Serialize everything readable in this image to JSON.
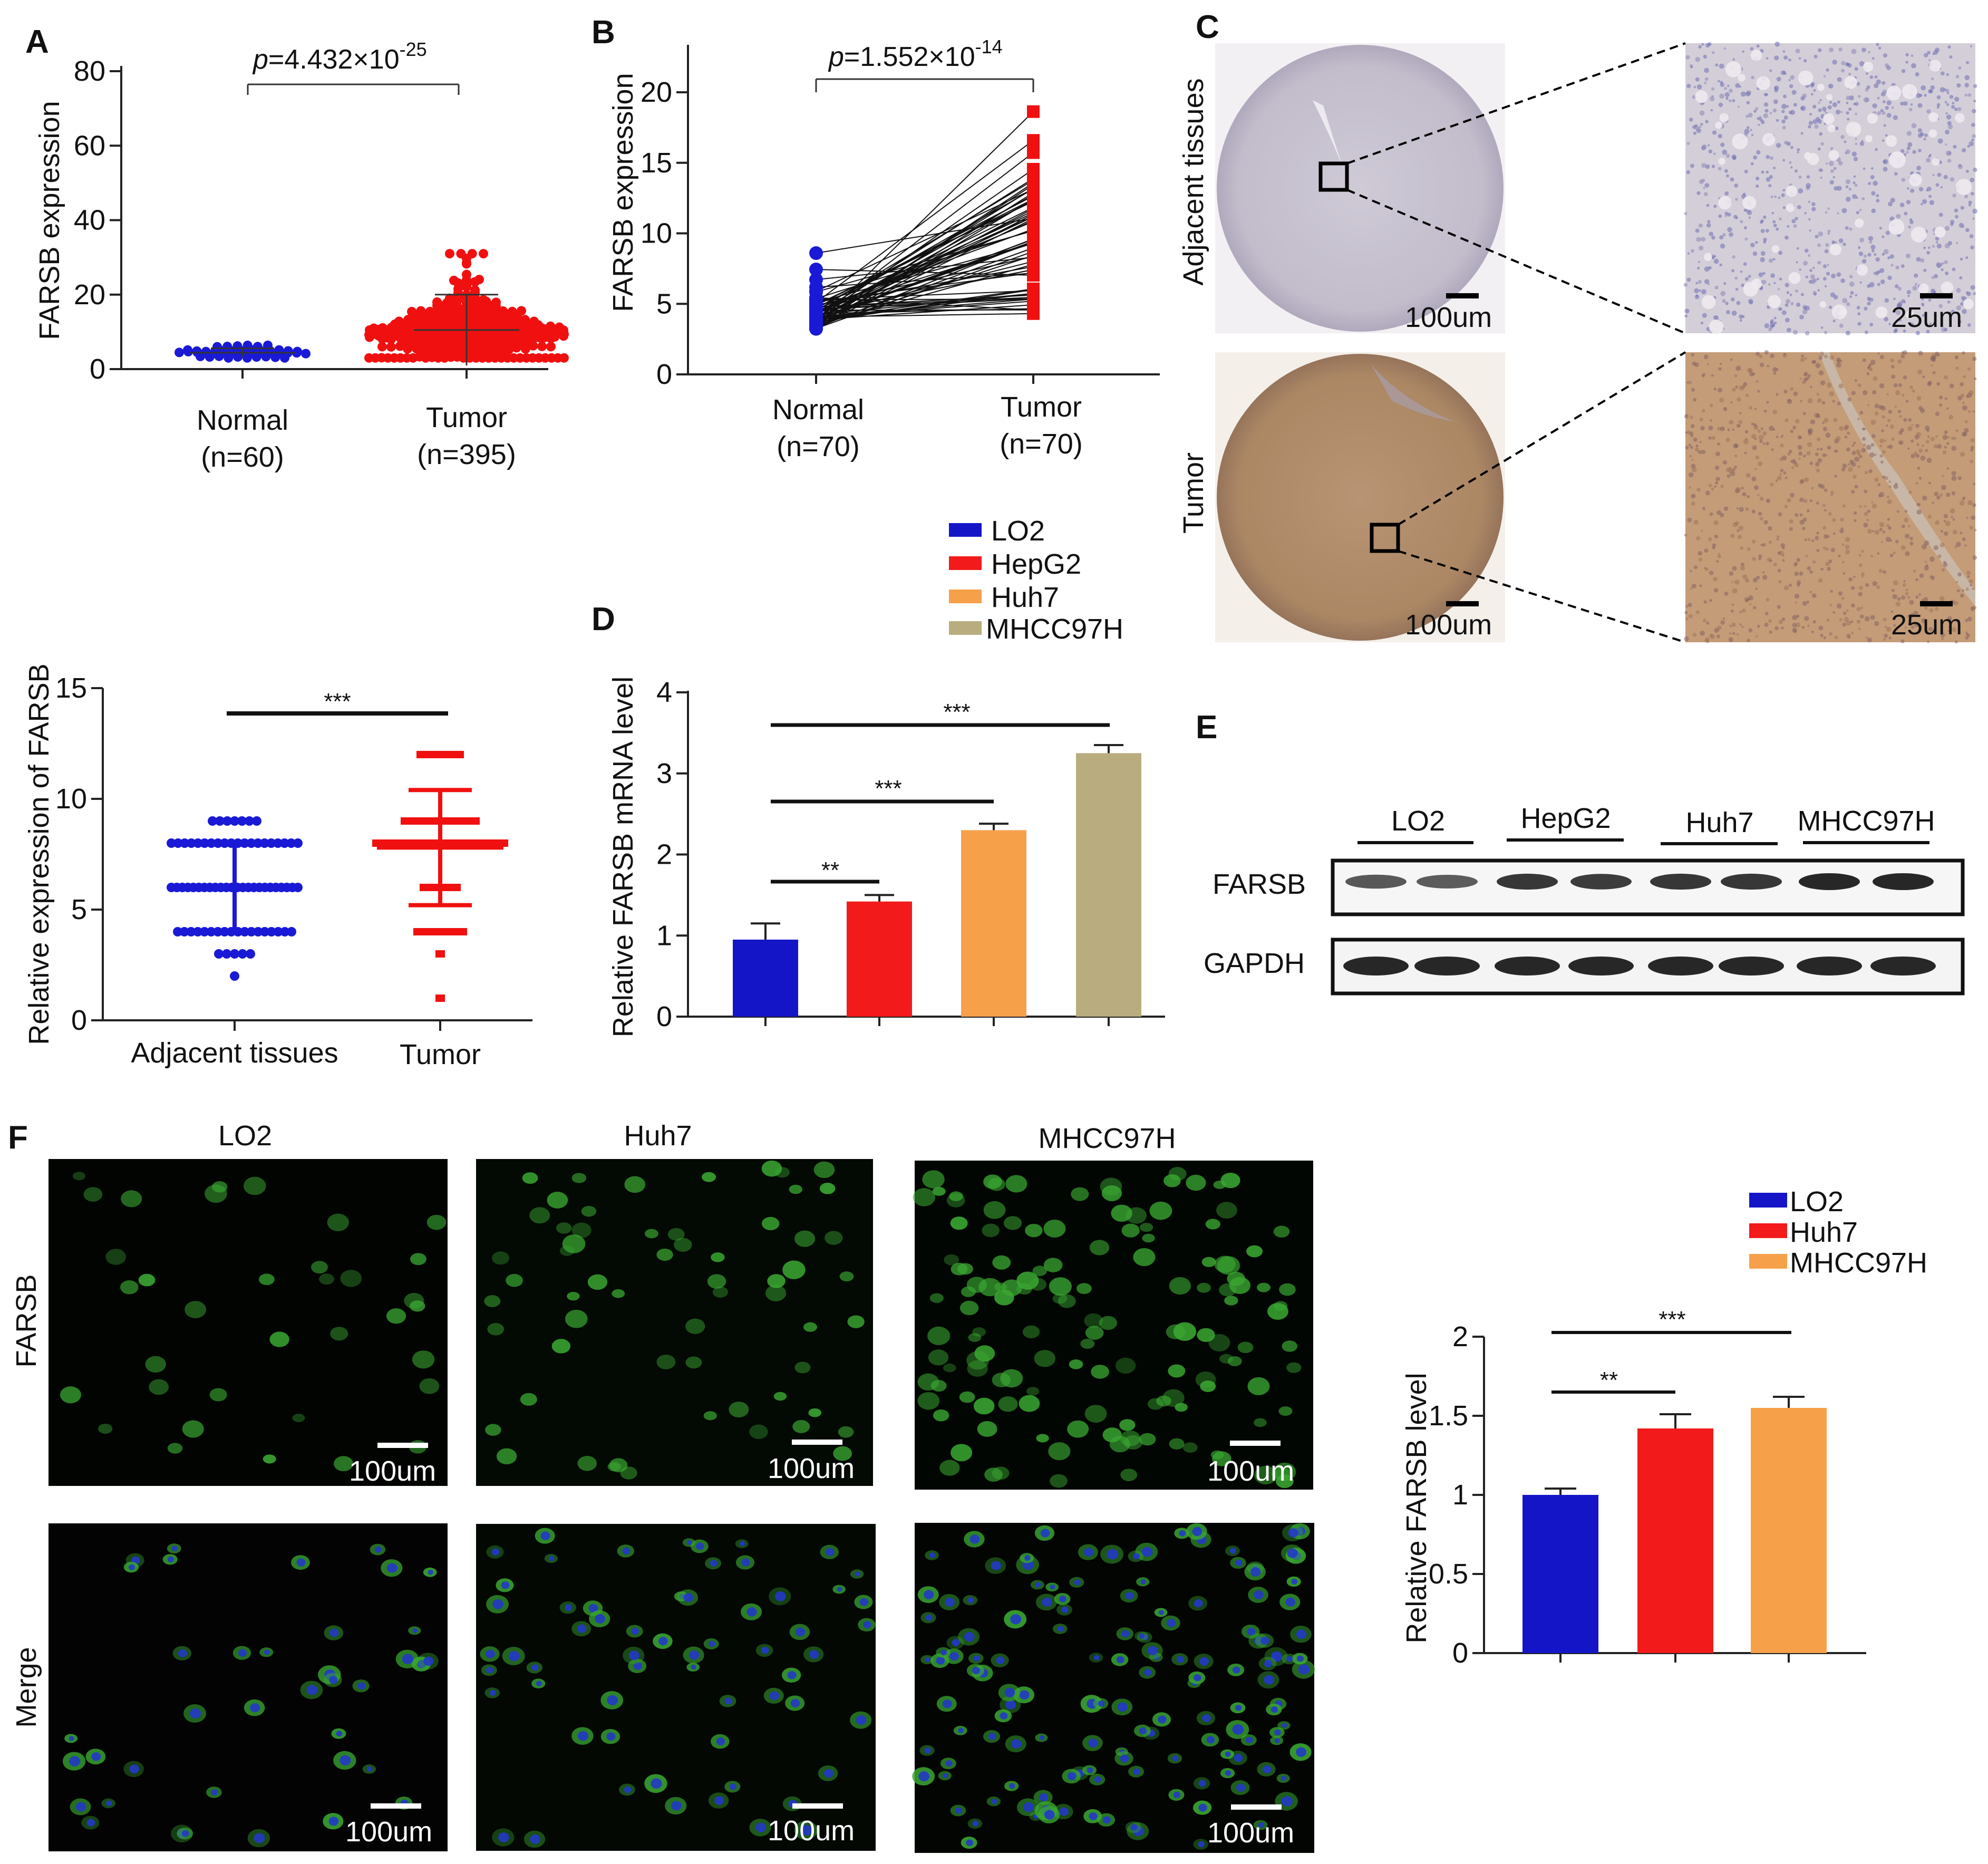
{
  "colors": {
    "normal_blue": "#1a1ad6",
    "tumor_red": "#f01010",
    "lo2": "#1515c8",
    "hepg2": "#f21a1a",
    "huh7": "#f7a04a",
    "mhcc97h": "#b9ad7f",
    "ihc_adjacent": "#c9c3cf",
    "ihc_tumor": "#b48e6c",
    "if_green": "#3aa832",
    "if_blue": "#2238c8"
  },
  "panelA": {
    "letter": "A",
    "pval_prefix": "p",
    "pval_text": "=4.432×10",
    "pval_exp": "-25",
    "chart_data": {
      "type": "scatter",
      "ylabel": "FARSB expression",
      "ylim": [
        0,
        80
      ],
      "yticks": [
        0,
        20,
        40,
        60,
        80
      ],
      "categories": [
        "Normal\n(n=60)",
        "Tumor\n(n=395)"
      ],
      "category_labels": [
        [
          "Normal",
          "(n=60)"
        ],
        [
          "Tumor",
          "(n=395)"
        ]
      ],
      "series": [
        {
          "group": "Normal",
          "n": 60,
          "mean": 4.4,
          "sd": 1.2,
          "min": 3,
          "max": 8.5
        },
        {
          "group": "Tumor",
          "n": 395,
          "mean": 10.5,
          "sd": 9.5,
          "min": 3,
          "max": 31
        }
      ]
    }
  },
  "panelB": {
    "letter": "B",
    "pval_prefix": "p",
    "pval_text": "=1.552×10",
    "pval_exp": "-14",
    "chart_data": {
      "type": "scatter",
      "ylabel": "FARSB expression",
      "ylim": [
        0,
        20
      ],
      "yticks": [
        0,
        5,
        10,
        15,
        20
      ],
      "categories": [
        "Normal\n(n=70)",
        "Tumor\n(n=70)"
      ],
      "category_labels": [
        [
          "Normal",
          "(n=70)"
        ],
        [
          "Tumor",
          "(n=70)"
        ]
      ],
      "paired": true,
      "normal_range": [
        3,
        8.5
      ],
      "tumor_range": [
        3.5,
        19
      ]
    }
  },
  "panelC": {
    "letter": "C",
    "row_labels": [
      "Adjacent tissues",
      "Tumor"
    ],
    "scale_whole": "100um",
    "scale_zoom": "25um"
  },
  "legendD": [
    "LO2",
    "HepG2",
    "Huh7",
    "MHCC97H"
  ],
  "panelLeft": {
    "chart_data": {
      "type": "scatter",
      "ylabel": "Relative expression of FARSB",
      "ylim": [
        0,
        15
      ],
      "yticks": [
        0,
        5,
        10,
        15
      ],
      "categories": [
        "Adjacent tissues",
        "Tumor"
      ],
      "series": [
        {
          "group": "Adjacent tissues",
          "mean": 6.0,
          "sd_low": 4.0,
          "sd_high": 8.0,
          "levels": [
            2,
            3,
            4,
            6,
            8,
            9
          ]
        },
        {
          "group": "Tumor",
          "mean": 7.8,
          "sd_low": 5.2,
          "sd_high": 10.4,
          "levels": [
            1,
            3,
            4,
            6,
            8,
            9,
            12
          ]
        }
      ],
      "significance": "***"
    }
  },
  "panelD": {
    "letter": "D",
    "chart_data": {
      "type": "bar",
      "ylabel": "Relative FARSB mRNA level",
      "ylim": [
        0,
        4
      ],
      "yticks": [
        0,
        1,
        2,
        3,
        4
      ],
      "categories": [
        "LO2",
        "HepG2",
        "Huh7",
        "MHCC97H"
      ],
      "values": [
        0.95,
        1.42,
        2.3,
        3.25
      ],
      "errors": [
        0.2,
        0.08,
        0.08,
        0.1
      ],
      "significance": [
        "**",
        "***",
        "***"
      ]
    }
  },
  "panelE": {
    "letter": "E",
    "groups": [
      "LO2",
      "HepG2",
      "Huh7",
      "MHCC97H"
    ],
    "rows": [
      "FARSB",
      "GAPDH"
    ]
  },
  "panelF": {
    "letter": "F",
    "columns": [
      "LO2",
      "Huh7",
      "MHCC97H"
    ],
    "rows": [
      "FARSB",
      "Merge"
    ],
    "scale": "100um",
    "legend": [
      "LO2",
      "Huh7",
      "MHCC97H"
    ],
    "chart_data": {
      "type": "bar",
      "ylabel": "Relative FARSB level",
      "ylim": [
        0,
        2
      ],
      "yticks": [
        "0",
        "0.5",
        "1",
        "1.5",
        "2"
      ],
      "categories": [
        "LO2",
        "Huh7",
        "MHCC97H"
      ],
      "values": [
        1.0,
        1.42,
        1.55
      ],
      "errors": [
        0.04,
        0.09,
        0.07
      ],
      "significance": [
        "**",
        "***"
      ]
    }
  }
}
